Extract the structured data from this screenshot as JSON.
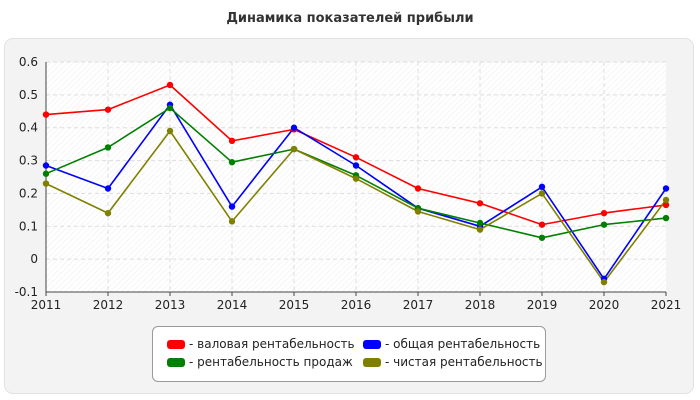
{
  "chart_data": {
    "type": "line",
    "title": "Динамика показателей прибыли",
    "x": [
      "2011",
      "2012",
      "2013",
      "2014",
      "2015",
      "2016",
      "2017",
      "2018",
      "2019",
      "2020",
      "2021"
    ],
    "ylim": [
      -0.1,
      0.6
    ],
    "yticks": [
      "-0.1",
      "0",
      "0.1",
      "0.2",
      "0.3",
      "0.4",
      "0.5",
      "0.6"
    ],
    "grid": true,
    "legend_position": "bottom",
    "series": [
      {
        "name": "- валовая рентабельность",
        "color": "#ff0000",
        "values": [
          0.44,
          0.455,
          0.53,
          0.36,
          0.395,
          0.31,
          0.215,
          0.17,
          0.105,
          0.14,
          0.165
        ]
      },
      {
        "name": "- общая рентабельность",
        "color": "#0000ff",
        "values": [
          0.285,
          0.215,
          0.47,
          0.16,
          0.4,
          0.285,
          0.155,
          0.1,
          0.22,
          -0.06,
          0.215
        ]
      },
      {
        "name": "- рентабельность продаж",
        "color": "#008000",
        "values": [
          0.26,
          0.34,
          0.46,
          0.295,
          0.335,
          0.255,
          0.155,
          0.11,
          0.065,
          0.105,
          0.125
        ]
      },
      {
        "name": "- чистая рентабельность",
        "color": "#808000",
        "values": [
          0.23,
          0.14,
          0.39,
          0.115,
          0.335,
          0.245,
          0.145,
          0.09,
          0.2,
          -0.07,
          0.18
        ]
      }
    ]
  }
}
